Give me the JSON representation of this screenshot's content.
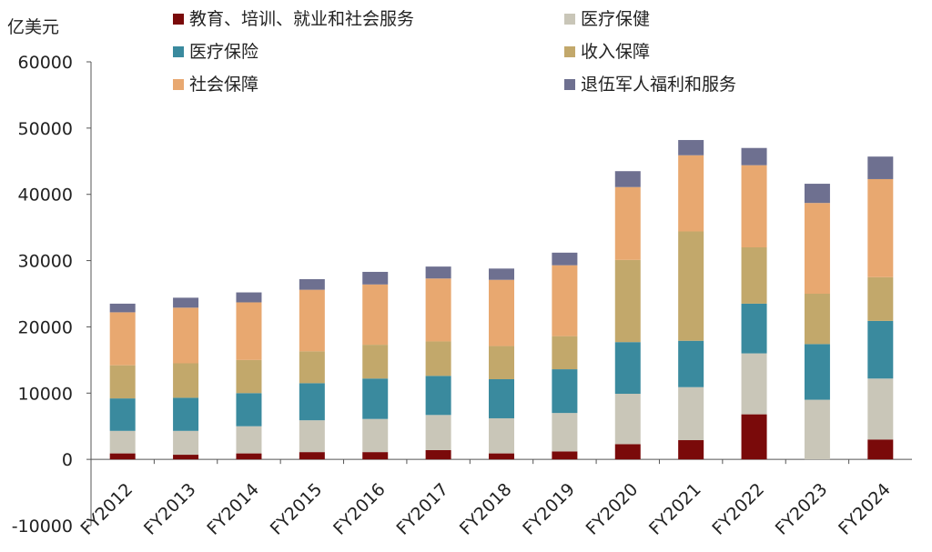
{
  "chart_data": {
    "type": "bar",
    "stacked": true,
    "ylabel": "亿美元",
    "ylim": [
      -10000,
      60000
    ],
    "yticks": [
      -10000,
      0,
      10000,
      20000,
      30000,
      40000,
      50000,
      60000
    ],
    "categories": [
      "FY2012",
      "FY2013",
      "FY2014",
      "FY2015",
      "FY2016",
      "FY2017",
      "FY2018",
      "FY2019",
      "FY2020",
      "FY2021",
      "FY2022",
      "FY2023",
      "FY2024"
    ],
    "legend_position": "top",
    "series": [
      {
        "name": "教育、培训、就业和社会服务",
        "color": "#7a0a0a",
        "values": [
          900,
          700,
          900,
          1100,
          1100,
          1400,
          900,
          1200,
          2300,
          2900,
          6800,
          0,
          3000
        ]
      },
      {
        "name": "医疗保健",
        "color": "#c9c6b8",
        "values": [
          3400,
          3600,
          4100,
          4800,
          5000,
          5300,
          5300,
          5800,
          7600,
          8000,
          9200,
          9000,
          9200
        ]
      },
      {
        "name": "医疗保险",
        "color": "#3a8a9e",
        "values": [
          4900,
          5000,
          5000,
          5600,
          6100,
          5900,
          5900,
          6600,
          7800,
          7000,
          7500,
          8400,
          8700
        ]
      },
      {
        "name": "收入保障",
        "color": "#c2a86b",
        "values": [
          5000,
          5200,
          5000,
          4800,
          5100,
          5200,
          5000,
          5000,
          12400,
          16500,
          8500,
          7600,
          6600
        ]
      },
      {
        "name": "社会保障",
        "color": "#e8a870",
        "values": [
          8000,
          8400,
          8700,
          9300,
          9100,
          9500,
          10000,
          10700,
          11000,
          11500,
          12400,
          13700,
          14800
        ]
      },
      {
        "name": "退伍军人福利和服务",
        "color": "#6e7090",
        "values": [
          1300,
          1500,
          1500,
          1600,
          1900,
          1800,
          1700,
          1900,
          2400,
          2300,
          2600,
          2900,
          3400
        ]
      }
    ]
  }
}
